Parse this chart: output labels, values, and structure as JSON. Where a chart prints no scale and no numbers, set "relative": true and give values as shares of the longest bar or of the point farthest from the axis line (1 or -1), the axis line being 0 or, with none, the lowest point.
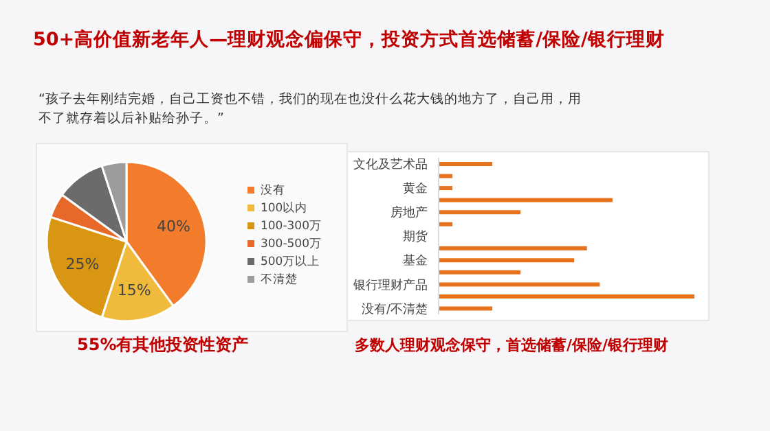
{
  "chart_data": [
    {
      "type": "pie",
      "title": "50+高价值新老年人—理财观念偏保守，投资方式首选储蓄/保险/银行理财",
      "categories": [
        "没有",
        "100以内",
        "100-300万",
        "300-500万",
        "500万以上",
        "不清楚"
      ],
      "values": [
        40,
        15,
        25,
        5,
        10,
        5
      ],
      "colors": [
        "#f27b2c",
        "#f0bb3c",
        "#d99612",
        "#e8682a",
        "#6b6b6b",
        "#9c9c9c"
      ],
      "value_labels": [
        "40%",
        "15%",
        "25%",
        null,
        null,
        null
      ],
      "legend": "right",
      "annotations": [
        "“孩子去年刚结完婚，自己工资也不错，我们的现在也没什么花大钱的地方了，自己用，用不了就存着以后补贴给孙子。”",
        "55%有其他投资性资产"
      ]
    },
    {
      "type": "bar",
      "orientation": "horizontal",
      "relative": true,
      "categories": [
        "文化及艺术品",
        null,
        "黄金",
        null,
        "房地产",
        null,
        "期货",
        null,
        "基金",
        null,
        "银行理财产品",
        null,
        "没有/不清楚"
      ],
      "values": [
        0.21,
        0.054,
        0.054,
        0.68,
        0.32,
        0.054,
        0,
        0.58,
        0.53,
        0.32,
        0.63,
        1,
        0.21
      ],
      "color": "#e8731f",
      "annotations": [
        "多数人理财观念保守，首选储蓄/保险/银行理财"
      ]
    }
  ]
}
